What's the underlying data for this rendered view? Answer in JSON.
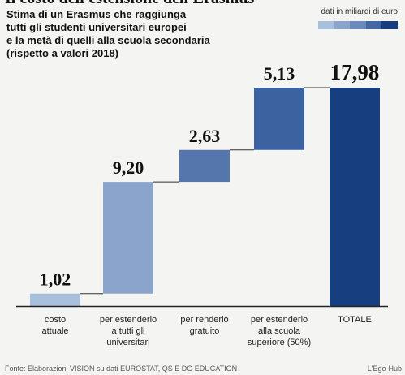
{
  "header": {
    "cut_title": "Il costo dell'estensione dell'Erasmus",
    "subtitle_lines": [
      "Stima di un Erasmus che raggiunga",
      "tutti gli studenti universitari europei",
      "e la metà di quelli alla scuola secondaria",
      "(rispetto a valori 2018)"
    ],
    "unit_label": "dati in miliardi di euro"
  },
  "legend_colors": [
    "#a9c0dd",
    "#8aa4cc",
    "#6b89bb",
    "#4467a3",
    "#173f7f"
  ],
  "chart_data": {
    "type": "bar",
    "subtype": "waterfall",
    "categories": [
      [
        "costo",
        "attuale"
      ],
      [
        "per estenderlo",
        "a tutti gli",
        "universitari"
      ],
      [
        "per renderlo",
        "gratuito"
      ],
      [
        "per estenderlo",
        "alla scuola",
        "superiore (50%)"
      ],
      [
        "TOTALE"
      ]
    ],
    "values": [
      1.02,
      9.2,
      2.63,
      5.13,
      17.98
    ],
    "data_labels": [
      "1,02",
      "9,20",
      "2,63",
      "5,13",
      "17,98"
    ],
    "cumulative_base": [
      0,
      1.02,
      10.22,
      12.85,
      0
    ],
    "ylim": [
      0,
      17.98
    ],
    "colors": [
      "#a9c0dd",
      "#8aa4cc",
      "#5576ad",
      "#3d62a0",
      "#173f7f"
    ],
    "grid": false,
    "title": "",
    "xlabel": "",
    "ylabel": ""
  },
  "footer": {
    "source": "Fonte: Elaborazioni VISION su dati EUROSTAT, QS E DG EDUCATION",
    "brand": "L'Ego-Hub"
  }
}
